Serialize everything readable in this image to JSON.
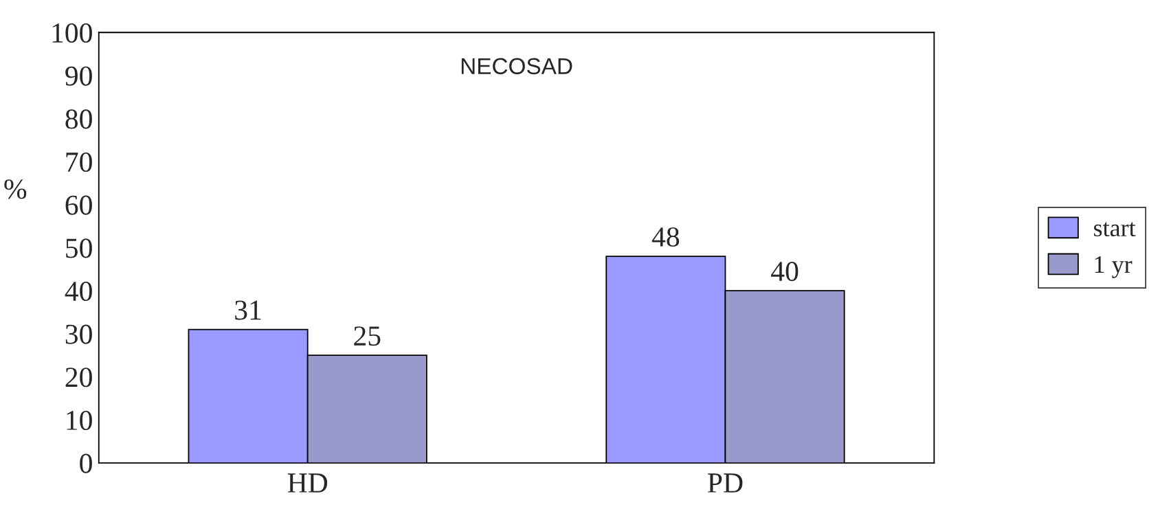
{
  "chart_data": {
    "type": "bar",
    "title": "NECOSAD",
    "ylabel": "%",
    "categories": [
      "HD",
      "PD"
    ],
    "series": [
      {
        "name": "start",
        "color": "#9999ff",
        "values": [
          31,
          48
        ]
      },
      {
        "name": "1 yr",
        "color": "#9999cc",
        "values": [
          25,
          40
        ]
      }
    ],
    "ylim": [
      0,
      100
    ],
    "yticks": [
      0,
      10,
      20,
      30,
      40,
      50,
      60,
      70,
      80,
      90,
      100
    ],
    "legend": "right",
    "data_labels": true
  }
}
